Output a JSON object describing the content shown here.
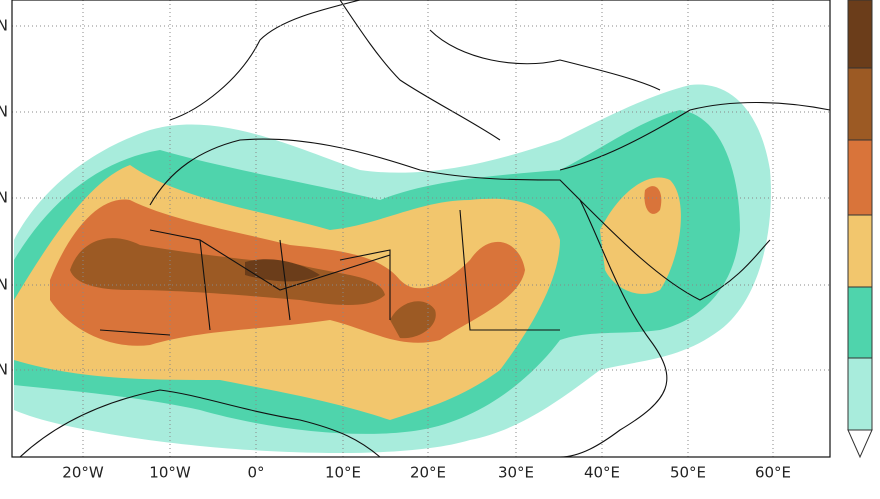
{
  "map": {
    "lon_labels": [
      "20°W",
      "10°W",
      "0°",
      "10°E",
      "20°E",
      "30°E",
      "40°E",
      "50°E",
      "60°E"
    ],
    "lat_labels": [
      "N",
      "N",
      "N",
      "N",
      "N"
    ]
  }
}
